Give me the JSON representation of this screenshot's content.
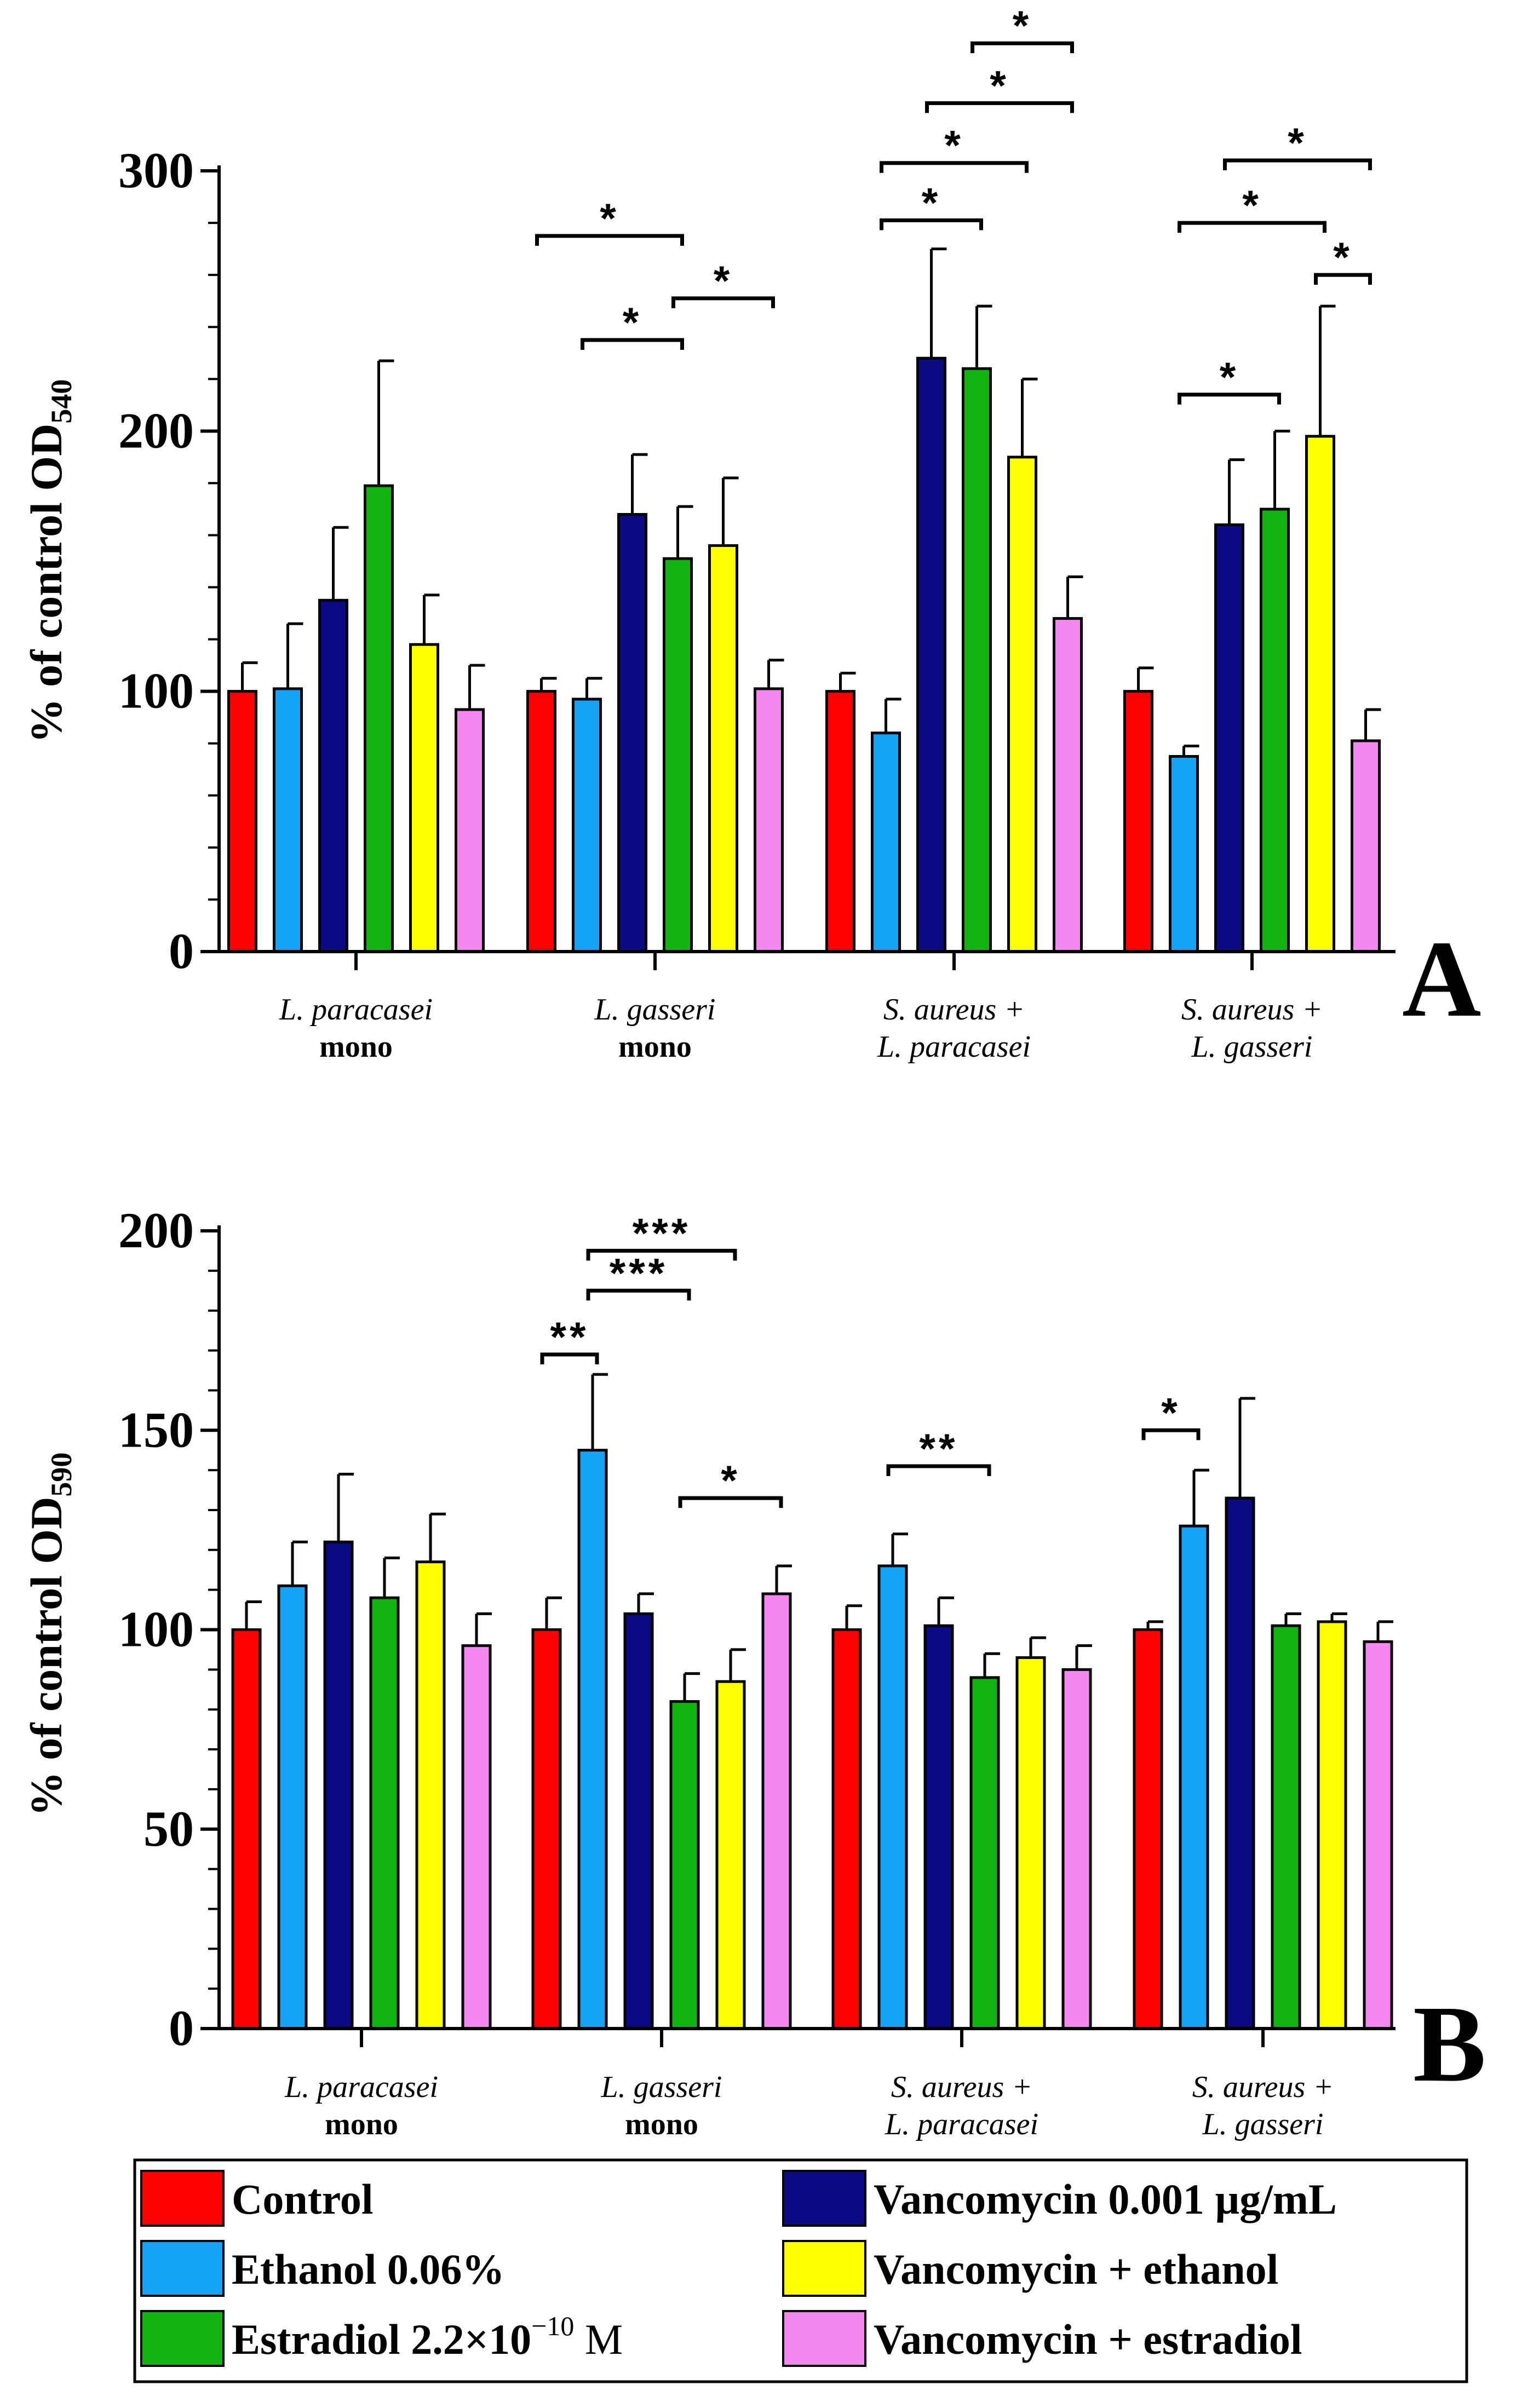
{
  "colors": {
    "control": "#ff0000",
    "ethanol": "#15a4f5",
    "vancomycin": "#0a0a82",
    "estradiol": "#12b412",
    "vanco_ethanol": "#ffff00",
    "vanco_estradiol": "#f488f0"
  },
  "chart_data": [
    {
      "type": "bar",
      "panel_label": "A",
      "ylabel": "% of control OD",
      "ylabel_sub": "540",
      "ylim": [
        0,
        300
      ],
      "yticks": [
        "0",
        "100",
        "200",
        "300"
      ],
      "categories": [
        {
          "line1": "L. paracasei",
          "line2": "mono"
        },
        {
          "line1": "L. gasseri",
          "line2": "mono"
        },
        {
          "line1": "S. aureus +",
          "line2": "L. paracasei"
        },
        {
          "line1": "S. aureus +",
          "line2": "L. gasseri"
        }
      ],
      "series": [
        {
          "name": "Control",
          "color_key": "control",
          "values": [
            100,
            100,
            100,
            100
          ],
          "errors": [
            11,
            5,
            7,
            9
          ]
        },
        {
          "name": "Ethanol 0.06%",
          "color_key": "ethanol",
          "values": [
            101,
            97,
            84,
            75
          ],
          "errors": [
            25,
            8,
            13,
            4
          ]
        },
        {
          "name": "Vancomycin 0.001 µg/mL",
          "color_key": "vancomycin",
          "values": [
            135,
            168,
            228,
            164
          ],
          "errors": [
            28,
            23,
            42,
            25
          ]
        },
        {
          "name": "Estradiol 2.2×10⁻¹⁰ M",
          "color_key": "estradiol",
          "values": [
            179,
            151,
            224,
            170
          ],
          "errors": [
            48,
            20,
            24,
            30
          ]
        },
        {
          "name": "Vancomycin + ethanol",
          "color_key": "vanco_ethanol",
          "values": [
            118,
            156,
            190,
            198
          ],
          "errors": [
            19,
            26,
            30,
            50
          ]
        },
        {
          "name": "Vancomycin + estradiol",
          "color_key": "vanco_estradiol",
          "values": [
            93,
            101,
            128,
            81
          ],
          "errors": [
            17,
            11,
            16,
            12
          ]
        }
      ],
      "significance": [
        {
          "group": 1,
          "from": 1,
          "to": 3,
          "y": 235,
          "label": "*"
        },
        {
          "group": 1,
          "from": 3,
          "to": 5,
          "y": 251,
          "label": "*"
        },
        {
          "group": 1,
          "from": 0,
          "to": 3,
          "y": 275,
          "label": "*"
        },
        {
          "group": 2,
          "from": 1,
          "to": 3,
          "y": 281,
          "label": "*"
        },
        {
          "group": 2,
          "from": 1,
          "to": 4,
          "y": 303,
          "label": "*"
        },
        {
          "group": 2,
          "from": 2,
          "to": 5,
          "y": 326,
          "label": "*"
        },
        {
          "group": 2,
          "from": 3,
          "to": 5,
          "y": 349,
          "label": "*"
        },
        {
          "group": 3,
          "from": 1,
          "to": 3,
          "y": 214,
          "label": "*"
        },
        {
          "group": 3,
          "from": 1,
          "to": 4,
          "y": 280,
          "label": "*"
        },
        {
          "group": 3,
          "from": 4,
          "to": 5,
          "y": 260,
          "label": "*"
        },
        {
          "group": 3,
          "from": 2,
          "to": 5,
          "y": 304,
          "label": "*"
        }
      ]
    },
    {
      "type": "bar",
      "panel_label": "B",
      "ylabel": "% of control OD",
      "ylabel_sub": "590",
      "ylim": [
        0,
        200
      ],
      "yticks": [
        "0",
        "50",
        "100",
        "150",
        "200"
      ],
      "categories": [
        {
          "line1": "L. paracasei",
          "line2": "mono"
        },
        {
          "line1": "L. gasseri",
          "line2": "mono"
        },
        {
          "line1": "S. aureus +",
          "line2": "L. paracasei"
        },
        {
          "line1": "S. aureus +",
          "line2": "L. gasseri"
        }
      ],
      "series": [
        {
          "name": "Control",
          "color_key": "control",
          "values": [
            100,
            100,
            100,
            100
          ],
          "errors": [
            7,
            8,
            6,
            2
          ]
        },
        {
          "name": "Ethanol 0.06%",
          "color_key": "ethanol",
          "values": [
            111,
            145,
            116,
            126
          ],
          "errors": [
            11,
            19,
            8,
            14
          ]
        },
        {
          "name": "Vancomycin 0.001 µg/mL",
          "color_key": "vancomycin",
          "values": [
            122,
            104,
            101,
            133
          ],
          "errors": [
            17,
            5,
            7,
            25
          ]
        },
        {
          "name": "Estradiol 2.2×10⁻¹⁰ M",
          "color_key": "estradiol",
          "values": [
            108,
            82,
            88,
            101
          ],
          "errors": [
            10,
            7,
            6,
            3
          ]
        },
        {
          "name": "Vancomycin + ethanol",
          "color_key": "vanco_ethanol",
          "values": [
            117,
            87,
            93,
            102
          ],
          "errors": [
            12,
            8,
            5,
            2
          ]
        },
        {
          "name": "Vancomycin + estradiol",
          "color_key": "vanco_estradiol",
          "values": [
            96,
            109,
            90,
            97
          ],
          "errors": [
            8,
            7,
            6,
            5
          ]
        }
      ],
      "significance": [
        {
          "group": 1,
          "from": 0,
          "to": 1,
          "y": 169,
          "label": "**"
        },
        {
          "group": 1,
          "from": 1,
          "to": 3,
          "y": 185,
          "label": "***"
        },
        {
          "group": 1,
          "from": 1,
          "to": 4,
          "y": 195,
          "label": "***"
        },
        {
          "group": 1,
          "from": 3,
          "to": 5,
          "y": 133,
          "label": "*"
        },
        {
          "group": 2,
          "from": 1,
          "to": 3,
          "y": 141,
          "label": "**"
        },
        {
          "group": 3,
          "from": 0,
          "to": 1,
          "y": 150,
          "label": "*"
        }
      ]
    }
  ],
  "legend": [
    {
      "label": "Control",
      "color_key": "control"
    },
    {
      "label": "Ethanol 0.06%",
      "color_key": "ethanol"
    },
    {
      "label": "Estradiol 2.2×10",
      "sup": "−10",
      "tail": " M",
      "color_key": "estradiol"
    },
    {
      "label": "Vancomycin 0.001 µg/mL",
      "color_key": "vancomycin"
    },
    {
      "label": "Vancomycin + ethanol",
      "color_key": "vanco_ethanol"
    },
    {
      "label": "Vancomycin + estradiol",
      "color_key": "vanco_estradiol"
    }
  ]
}
